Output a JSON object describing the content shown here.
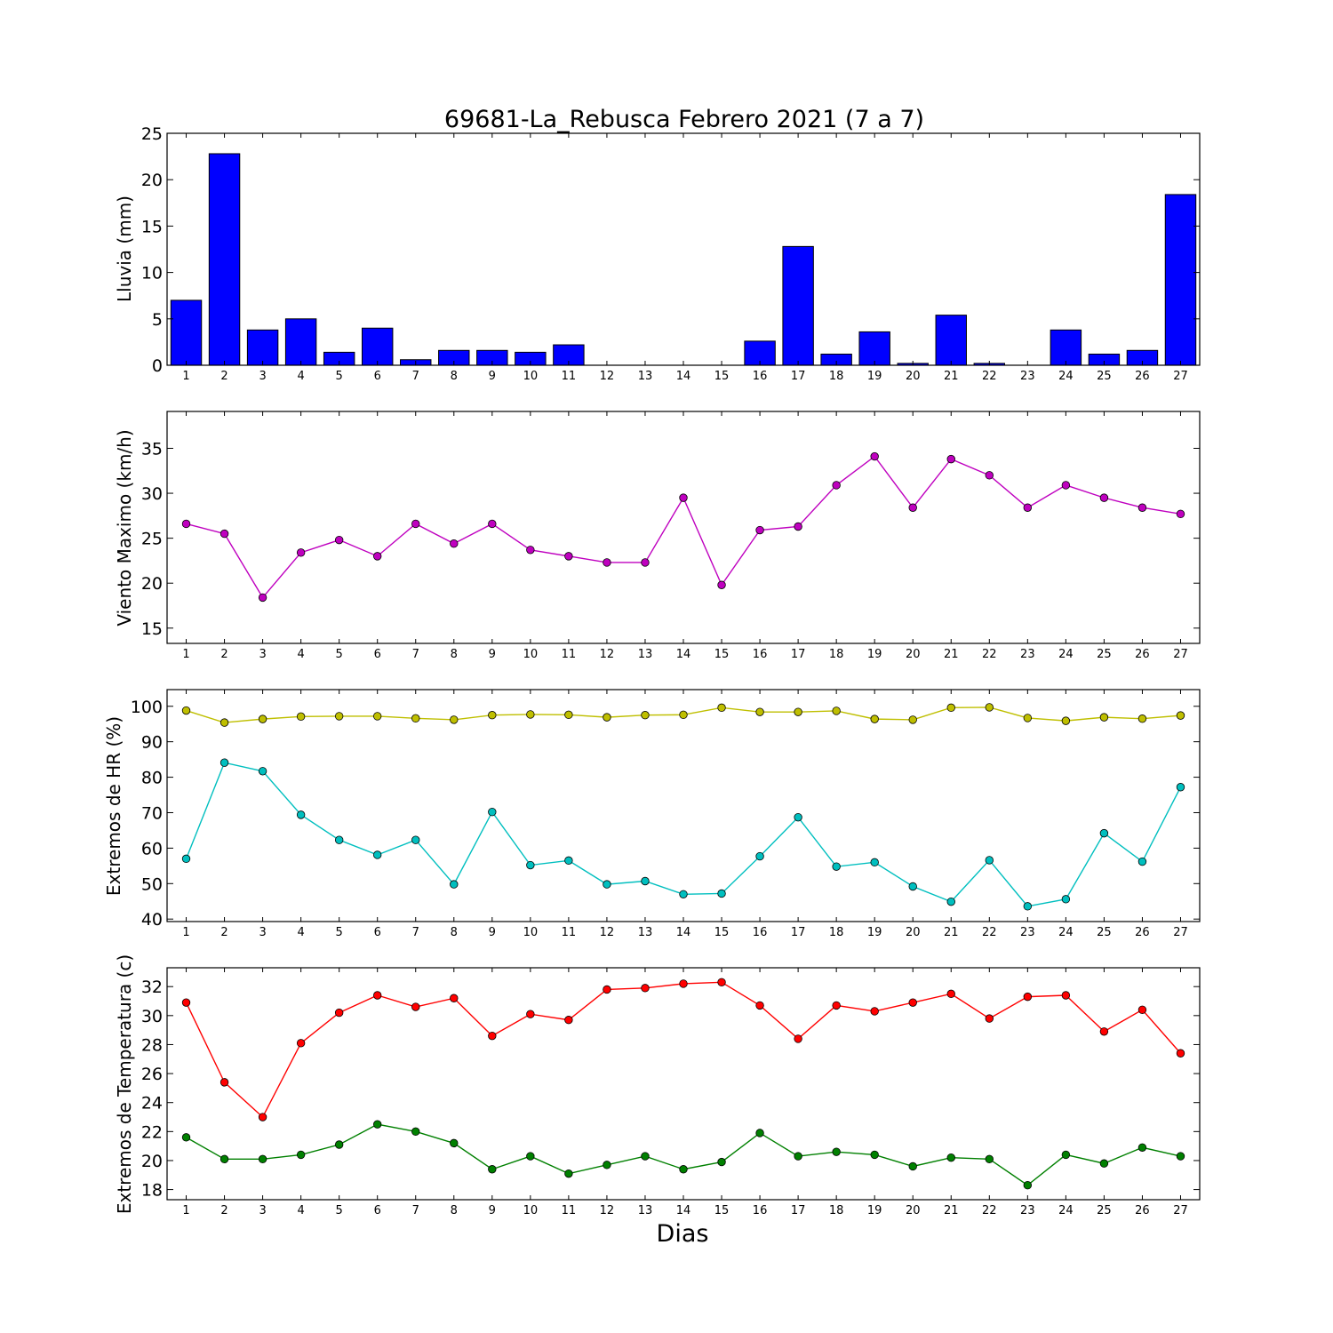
{
  "chart_data": [
    {
      "type": "bar",
      "title": "69681-La_Rebusca Febrero 2021  (7 a 7)",
      "ylabel": "Lluvia (mm)",
      "xlabel": "",
      "ylim": [
        0,
        25
      ],
      "yticks": [
        "0",
        "5",
        "10",
        "15",
        "20",
        "25"
      ],
      "categories": [
        "1",
        "2",
        "3",
        "4",
        "5",
        "6",
        "7",
        "8",
        "9",
        "10",
        "11",
        "12",
        "13",
        "14",
        "15",
        "16",
        "17",
        "18",
        "19",
        "20",
        "21",
        "22",
        "23",
        "24",
        "25",
        "26",
        "27"
      ],
      "values": [
        7.0,
        22.8,
        3.8,
        5.0,
        1.4,
        4.0,
        0.6,
        1.6,
        1.6,
        1.4,
        2.2,
        0,
        0,
        0,
        0,
        2.6,
        12.8,
        1.2,
        3.6,
        0.2,
        5.4,
        0.2,
        0,
        3.8,
        1.2,
        1.6,
        18.4
      ],
      "colors": {
        "bar": "#0000ff"
      },
      "grid": false
    },
    {
      "type": "line",
      "title": "",
      "ylabel": "Viento Maximo (km/h)",
      "xlabel": "",
      "ylim": [
        13.3,
        39.1
      ],
      "yticks": [
        "15",
        "20",
        "25",
        "30",
        "35"
      ],
      "categories": [
        "1",
        "2",
        "3",
        "4",
        "5",
        "6",
        "7",
        "8",
        "9",
        "10",
        "11",
        "12",
        "13",
        "14",
        "15",
        "16",
        "17",
        "18",
        "19",
        "20",
        "21",
        "22",
        "23",
        "24",
        "25",
        "26",
        "27"
      ],
      "series": [
        {
          "color": "#bf00bf",
          "values": [
            26.6,
            25.5,
            18.4,
            23.4,
            24.8,
            23.0,
            26.6,
            24.4,
            26.6,
            23.7,
            23.0,
            22.3,
            22.3,
            29.5,
            19.8,
            25.9,
            26.3,
            30.9,
            34.1,
            28.4,
            33.8,
            32.0,
            28.4,
            30.9,
            29.5,
            28.4,
            27.7
          ]
        }
      ],
      "grid": false
    },
    {
      "type": "line",
      "title": "",
      "ylabel": "Extremos de HR (%)",
      "xlabel": "",
      "ylim": [
        39.3,
        104.7
      ],
      "yticks": [
        "40",
        "50",
        "60",
        "70",
        "80",
        "90",
        "100"
      ],
      "categories": [
        "1",
        "2",
        "3",
        "4",
        "5",
        "6",
        "7",
        "8",
        "9",
        "10",
        "11",
        "12",
        "13",
        "14",
        "15",
        "16",
        "17",
        "18",
        "19",
        "20",
        "21",
        "22",
        "23",
        "24",
        "25",
        "26",
        "27"
      ],
      "series": [
        {
          "color": "#bfbf00",
          "values": [
            98.8,
            95.4,
            96.4,
            97.1,
            97.2,
            97.2,
            96.6,
            96.2,
            97.5,
            97.7,
            97.6,
            96.9,
            97.5,
            97.6,
            99.6,
            98.4,
            98.4,
            98.7,
            96.4,
            96.2,
            99.6,
            99.7,
            96.7,
            95.9,
            96.9,
            96.5,
            97.4
          ]
        },
        {
          "color": "#00bfbf",
          "values": [
            57.0,
            84.1,
            81.7,
            69.4,
            62.3,
            58.1,
            62.3,
            49.8,
            70.2,
            55.2,
            56.5,
            49.8,
            50.7,
            47.0,
            47.2,
            57.7,
            68.7,
            54.8,
            56.0,
            49.2,
            44.9,
            56.6,
            43.6,
            45.6,
            64.2,
            56.2,
            77.2
          ]
        }
      ],
      "grid": false
    },
    {
      "type": "line",
      "title": "",
      "ylabel": "Extremos de Temperatura (c)",
      "xlabel": "Dias",
      "ylim": [
        17.3,
        33.3
      ],
      "yticks": [
        "18",
        "20",
        "22",
        "24",
        "26",
        "28",
        "30",
        "32"
      ],
      "categories": [
        "1",
        "2",
        "3",
        "4",
        "5",
        "6",
        "7",
        "8",
        "9",
        "10",
        "11",
        "12",
        "13",
        "14",
        "15",
        "16",
        "17",
        "18",
        "19",
        "20",
        "21",
        "22",
        "23",
        "24",
        "25",
        "26",
        "27"
      ],
      "series": [
        {
          "color": "#ff0000",
          "values": [
            30.9,
            25.4,
            23.0,
            28.1,
            30.2,
            31.4,
            30.6,
            31.2,
            28.6,
            30.1,
            29.7,
            31.8,
            31.9,
            32.2,
            32.3,
            30.7,
            28.4,
            30.7,
            30.3,
            30.9,
            31.5,
            29.8,
            31.3,
            31.4,
            28.9,
            30.4,
            27.4
          ]
        },
        {
          "color": "#008000",
          "values": [
            21.6,
            20.1,
            20.1,
            20.4,
            21.1,
            22.5,
            22.0,
            21.2,
            19.4,
            20.3,
            19.1,
            19.7,
            20.3,
            19.4,
            19.9,
            21.9,
            20.3,
            20.6,
            20.4,
            19.6,
            20.2,
            20.1,
            18.3,
            20.4,
            19.8,
            20.9,
            20.3
          ]
        }
      ],
      "grid": false
    }
  ]
}
